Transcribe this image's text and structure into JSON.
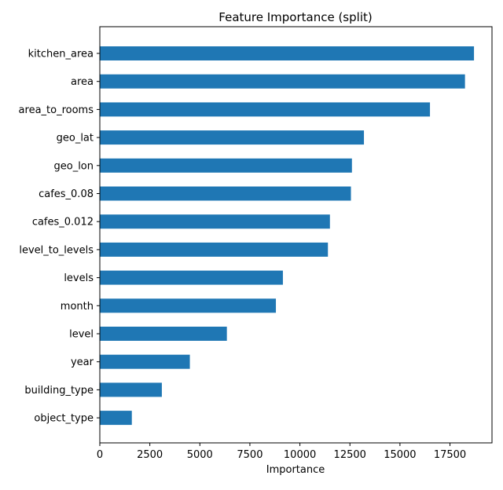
{
  "chart_data": {
    "type": "bar",
    "orientation": "horizontal",
    "title": "Feature Importance (split)",
    "xlabel": "Importance",
    "ylabel": "",
    "categories": [
      "kitchen_area",
      "area",
      "area_to_rooms",
      "geo_lat",
      "geo_lon",
      "cafes_0.08",
      "cafes_0.012",
      "level_to_levels",
      "levels",
      "month",
      "level",
      "year",
      "building_type",
      "object_type"
    ],
    "values": [
      18700,
      18250,
      16500,
      13200,
      12600,
      12550,
      11500,
      11400,
      9150,
      8800,
      6350,
      4500,
      3100,
      1600
    ],
    "xlim": [
      0,
      19600
    ],
    "xticks": [
      0,
      2500,
      5000,
      7500,
      10000,
      12500,
      15000,
      17500
    ],
    "xtick_labels": [
      "0",
      "2500",
      "5000",
      "7500",
      "10000",
      "12500",
      "15000",
      "17500"
    ],
    "bar_color": "#1f77b4",
    "grid": false,
    "legend": "none"
  }
}
